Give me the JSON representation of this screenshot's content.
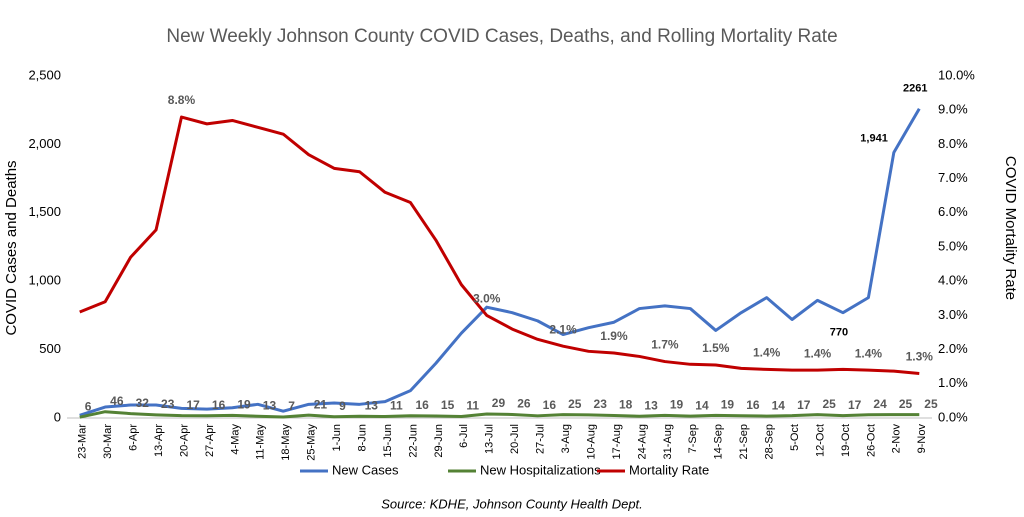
{
  "chart_data": {
    "type": "line",
    "title": "New Weekly Johnson County COVID Cases, Deaths, and Rolling Mortality Rate",
    "y_label": "COVID Cases  and Deaths",
    "y2_label": "COVID Mortality Rate",
    "source": "Source: KDHE, Johnson County Health Dept.",
    "categories": [
      "23-Mar",
      "30-Mar",
      "6-Apr",
      "13-Apr",
      "20-Apr",
      "27-Apr",
      "4-May",
      "11-May",
      "18-May",
      "25-May",
      "1-Jun",
      "8-Jun",
      "15-Jun",
      "22-Jun",
      "29-Jun",
      "6-Jul",
      "13-Jul",
      "20-Jul",
      "27-Jul",
      "3-Aug",
      "10-Aug",
      "17-Aug",
      "24-Aug",
      "31-Aug",
      "7-Sep",
      "14-Sep",
      "21-Sep",
      "28-Sep",
      "5-Oct",
      "12-Oct",
      "19-Oct",
      "26-Oct",
      "2-Nov",
      "9-Nov"
    ],
    "series": [
      {
        "name": "New Cases",
        "color": "#4472c4",
        "values": [
          20,
          80,
          95,
          95,
          70,
          65,
          75,
          100,
          50,
          100,
          110,
          100,
          120,
          200,
          400,
          620,
          810,
          770,
          710,
          610,
          660,
          700,
          800,
          820,
          800,
          640,
          770,
          880,
          720,
          860,
          770,
          880,
          1941,
          2261
        ],
        "value_labels": [
          null,
          null,
          null,
          null,
          null,
          null,
          null,
          null,
          null,
          null,
          null,
          null,
          null,
          null,
          null,
          null,
          null,
          null,
          null,
          null,
          null,
          null,
          null,
          null,
          null,
          null,
          null,
          null,
          null,
          null,
          "770",
          null,
          "1,941",
          "2261"
        ]
      },
      {
        "name": "New Hospitalizations",
        "color": "#548235",
        "values": [
          6,
          46,
          32,
          23,
          17,
          16,
          19,
          13,
          7,
          21,
          9,
          13,
          11,
          16,
          15,
          11,
          29,
          26,
          16,
          25,
          23,
          18,
          13,
          19,
          14,
          19,
          16,
          14,
          17,
          25,
          17,
          24,
          25,
          25
        ]
      },
      {
        "name": "Mortality Rate",
        "color": "#c00000",
        "axis": "y2",
        "values": [
          3.1,
          3.4,
          4.7,
          5.5,
          8.8,
          8.6,
          8.7,
          8.5,
          8.3,
          7.7,
          7.3,
          7.2,
          6.6,
          6.3,
          5.2,
          3.9,
          3.0,
          2.6,
          2.3,
          2.1,
          1.95,
          1.9,
          1.8,
          1.65,
          1.57,
          1.55,
          1.45,
          1.42,
          1.4,
          1.4,
          1.42,
          1.4,
          1.37,
          1.3
        ],
        "value_labels": [
          null,
          null,
          null,
          null,
          "8.8%",
          null,
          null,
          null,
          null,
          null,
          null,
          null,
          null,
          null,
          null,
          null,
          "3.0%",
          null,
          null,
          "2.1%",
          null,
          "1.9%",
          null,
          "1.7%",
          null,
          "1.5%",
          null,
          "1.4%",
          null,
          "1.4%",
          null,
          "1.4%",
          null,
          "1.3%"
        ]
      }
    ],
    "ylim": [
      0,
      2500
    ],
    "yticks": [
      0,
      500,
      {
        "value": 1000,
        "label": "1,000"
      },
      {
        "value": 1500,
        "label": "1,500"
      },
      {
        "value": 2000,
        "label": "2,000"
      },
      {
        "value": 2500,
        "label": "2,500"
      }
    ],
    "y2lim": [
      0,
      10
    ],
    "y2ticks": [
      {
        "value": 0,
        "label": "0.0%"
      },
      {
        "value": 1,
        "label": "1.0%"
      },
      {
        "value": 2,
        "label": "2.0%"
      },
      {
        "value": 3,
        "label": "3.0%"
      },
      {
        "value": 4,
        "label": "4.0%"
      },
      {
        "value": 5,
        "label": "5.0%"
      },
      {
        "value": 6,
        "label": "6.0%"
      },
      {
        "value": 7,
        "label": "7.0%"
      },
      {
        "value": 8,
        "label": "8.0%"
      },
      {
        "value": 9,
        "label": "9.0%"
      },
      {
        "value": 10,
        "label": "10.0%"
      }
    ],
    "grid": false,
    "legend": "bottom"
  }
}
